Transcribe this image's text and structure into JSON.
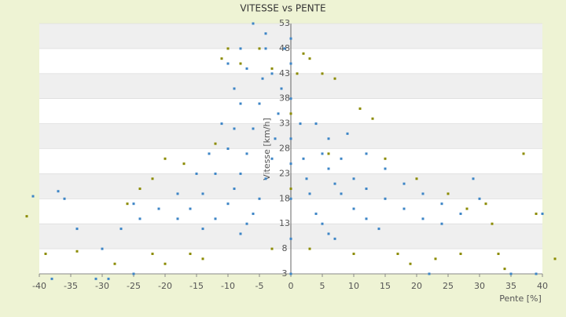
{
  "chart_data": {
    "type": "scatter",
    "title": "VITESSE vs PENTE",
    "x_label": "Pente [%]",
    "y_label": "Vitesse [km/h]",
    "xlim": [
      -40,
      40
    ],
    "ylim": [
      3,
      53
    ],
    "xticks": [
      -40,
      -35,
      -30,
      -25,
      -20,
      -15,
      -10,
      -5,
      0,
      5,
      10,
      15,
      20,
      25,
      30,
      35,
      40
    ],
    "yticks": [
      3,
      8,
      13,
      18,
      23,
      28,
      33,
      38,
      43,
      48,
      53
    ],
    "grid": true,
    "series": [
      {
        "color": "#3d85c6",
        "x": [
          -1,
          -1.5,
          -2,
          -2.5,
          -3,
          -4,
          -5,
          -6,
          -7,
          -8,
          -4,
          -4.5,
          -5,
          -6,
          -7,
          -8,
          -9,
          -10,
          -12,
          -14,
          -6,
          -7,
          -8,
          -9,
          -10,
          -12,
          -14,
          -16,
          -18,
          -9,
          -11,
          -13,
          -15,
          -18,
          -21,
          -24,
          -27,
          1.5,
          2,
          2.5,
          3,
          4,
          5,
          6,
          7,
          4,
          5,
          6,
          7,
          8,
          10,
          12,
          14,
          6,
          8,
          10,
          12,
          15,
          18,
          21,
          24,
          9,
          12,
          15,
          18,
          21,
          24,
          27,
          0,
          0,
          0,
          0,
          0,
          0,
          0,
          0,
          -38,
          -36,
          -34,
          -31,
          -30,
          -29,
          -41,
          -37,
          -25,
          -25,
          30,
          29,
          22,
          35,
          39,
          40,
          -3,
          -4,
          -10,
          -8
        ],
        "values": [
          48,
          40,
          35,
          30,
          26,
          22,
          18,
          15,
          13,
          11,
          48,
          42,
          37,
          32,
          27,
          23,
          20,
          17,
          14,
          12,
          53,
          44,
          37,
          32,
          28,
          23,
          19,
          16,
          14,
          40,
          33,
          27,
          23,
          19,
          16,
          14,
          12,
          33,
          26,
          22,
          19,
          15,
          13,
          11,
          10,
          33,
          27,
          24,
          21,
          19,
          16,
          14,
          12,
          30,
          26,
          22,
          20,
          18,
          16,
          14,
          13,
          31,
          27,
          24,
          21,
          19,
          17,
          15,
          3,
          10,
          18,
          25,
          30,
          38,
          45,
          50,
          2,
          18,
          12,
          2,
          8,
          2,
          18.5,
          19.5,
          17,
          3,
          18,
          22,
          3,
          3,
          3,
          15,
          43,
          51,
          45,
          48
        ]
      },
      {
        "color": "#8b8b00",
        "x": [
          -42,
          -39,
          -34,
          -28,
          -22,
          -20,
          -17,
          -20,
          -22,
          -12,
          -11,
          -10,
          -8,
          -5,
          -3,
          1,
          2,
          3,
          5,
          7,
          11,
          13,
          17,
          19,
          23,
          27,
          31,
          32,
          33,
          34,
          37,
          39,
          42,
          28,
          20,
          25,
          6,
          15,
          -14,
          -16,
          -26,
          -24,
          3,
          10,
          -3,
          0,
          0
        ],
        "values": [
          14.5,
          7,
          7.5,
          5,
          7,
          5,
          25,
          26,
          22,
          29,
          46,
          48,
          45,
          48,
          44,
          43,
          47,
          46,
          43,
          42,
          36,
          34,
          7,
          5,
          6,
          7,
          17,
          13,
          7,
          4,
          27,
          15,
          6,
          16,
          22,
          19,
          27,
          26,
          6,
          7,
          17,
          20,
          8,
          7,
          8,
          20,
          35
        ]
      }
    ]
  }
}
